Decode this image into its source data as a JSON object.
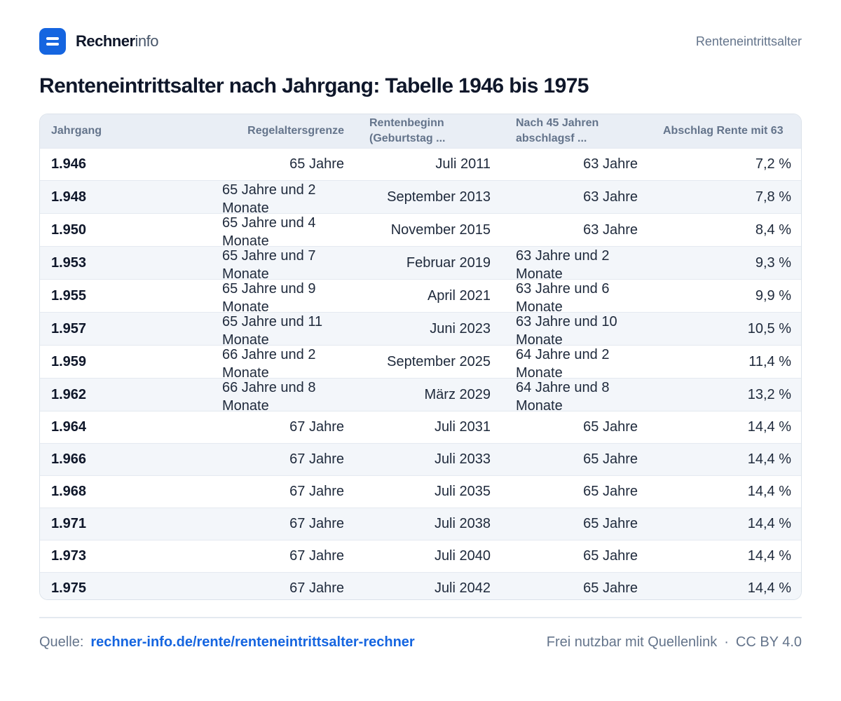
{
  "brand": {
    "name_strong": "Rechner",
    "name_light": "info"
  },
  "header": {
    "right_link": "Renteneintrittsalter"
  },
  "title": "Renteneintrittsalter nach Jahrgang: Tabelle 1946 bis 1975",
  "table": {
    "columns": [
      "Jahrgang",
      "Regelaltersgrenze",
      "Rentenbeginn (Geburtstag ...",
      "Nach 45 Jahren abschlagsf ...",
      "Abschlag Rente mit 63"
    ],
    "rows": [
      [
        "1.946",
        "65 Jahre",
        "Juli 2011",
        "63 Jahre",
        "7,2 %"
      ],
      [
        "1.948",
        "65 Jahre und 2 Monate",
        "September 2013",
        "63 Jahre",
        "7,8 %"
      ],
      [
        "1.950",
        "65 Jahre und 4 Monate",
        "November 2015",
        "63 Jahre",
        "8,4 %"
      ],
      [
        "1.953",
        "65 Jahre und 7 Monate",
        "Februar 2019",
        "63 Jahre und 2 Monate",
        "9,3 %"
      ],
      [
        "1.955",
        "65 Jahre und 9 Monate",
        "April 2021",
        "63 Jahre und 6 Monate",
        "9,9 %"
      ],
      [
        "1.957",
        "65 Jahre und 11 Monate",
        "Juni 2023",
        "63 Jahre und 10 Monate",
        "10,5 %"
      ],
      [
        "1.959",
        "66 Jahre und 2 Monate",
        "September 2025",
        "64 Jahre und 2 Monate",
        "11,4 %"
      ],
      [
        "1.962",
        "66 Jahre und 8 Monate",
        "März 2029",
        "64 Jahre und 8 Monate",
        "13,2 %"
      ],
      [
        "1.964",
        "67 Jahre",
        "Juli 2031",
        "65 Jahre",
        "14,4 %"
      ],
      [
        "1.966",
        "67 Jahre",
        "Juli 2033",
        "65 Jahre",
        "14,4 %"
      ],
      [
        "1.968",
        "67 Jahre",
        "Juli 2035",
        "65 Jahre",
        "14,4 %"
      ],
      [
        "1.971",
        "67 Jahre",
        "Juli 2038",
        "65 Jahre",
        "14,4 %"
      ],
      [
        "1.973",
        "67 Jahre",
        "Juli 2040",
        "65 Jahre",
        "14,4 %"
      ],
      [
        "1.975",
        "67 Jahre",
        "Juli 2042",
        "65 Jahre",
        "14,4 %"
      ]
    ]
  },
  "footer": {
    "source_label": "Quelle:",
    "source_link": "rechner-info.de/rente/renteneintrittsalter-rechner",
    "license_text": "Frei nutzbar mit Quellenlink",
    "separator": "·",
    "license": "CC BY 4.0"
  },
  "colors": {
    "accent": "#1565e0",
    "header_bg": "#e9eef5",
    "stripe": "#f3f6fa",
    "text": "#0f172a",
    "muted": "#64748b"
  },
  "icons": {
    "logo": "menu-lines-icon"
  }
}
